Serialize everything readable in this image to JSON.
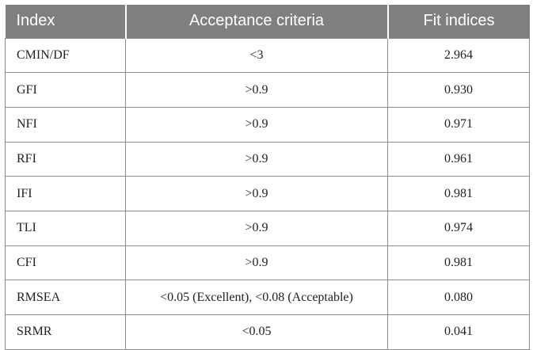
{
  "table": {
    "headers": {
      "index": "Index",
      "criteria": "Acceptance criteria",
      "fit": "Fit indices"
    },
    "rows": [
      {
        "index": "CMIN/DF",
        "criteria": "<3",
        "fit": "2.964"
      },
      {
        "index": "GFI",
        "criteria": ">0.9",
        "fit": "0.930"
      },
      {
        "index": "NFI",
        "criteria": ">0.9",
        "fit": "0.971"
      },
      {
        "index": "RFI",
        "criteria": ">0.9",
        "fit": "0.961"
      },
      {
        "index": "IFI",
        "criteria": ">0.9",
        "fit": "0.981"
      },
      {
        "index": "TLI",
        "criteria": ">0.9",
        "fit": "0.974"
      },
      {
        "index": "CFI",
        "criteria": ">0.9",
        "fit": "0.981"
      },
      {
        "index": "RMSEA",
        "criteria": "<0.05 (Excellent), <0.08 (Acceptable)",
        "fit": "0.080"
      },
      {
        "index": "SRMR",
        "criteria": "<0.05",
        "fit": "0.041"
      }
    ],
    "colors": {
      "header_background": "#7f7f7f",
      "header_text": "#ffffff",
      "border": "#8c8c8c"
    }
  }
}
